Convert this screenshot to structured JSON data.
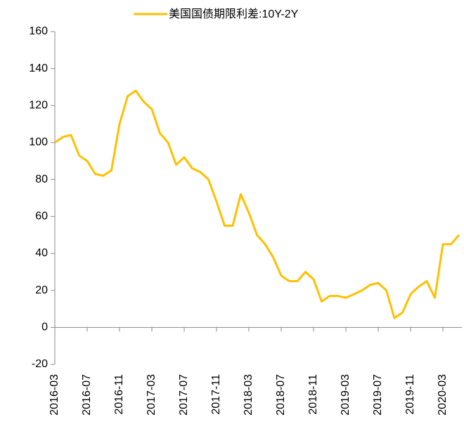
{
  "chart_data": {
    "type": "line",
    "categories": [
      "2016-03",
      null,
      null,
      null,
      "2016-07",
      null,
      null,
      null,
      "2016-11",
      null,
      null,
      null,
      "2017-03",
      null,
      null,
      null,
      "2017-07",
      null,
      null,
      null,
      "2017-11",
      null,
      null,
      null,
      "2018-03",
      null,
      null,
      null,
      "2018-07",
      null,
      null,
      null,
      "2018-11",
      null,
      null,
      null,
      "2019-03",
      null,
      null,
      null,
      "2019-07",
      null,
      null,
      null,
      "2019-11",
      null,
      null,
      null,
      "2020-03",
      null,
      null
    ],
    "series": [
      {
        "name": "美国国债期限利差:10Y-2Y",
        "color": "#FFC000",
        "values": [
          100,
          103,
          104,
          93,
          90,
          83,
          82,
          85,
          110,
          125,
          128,
          122,
          118,
          105,
          100,
          88,
          92,
          86,
          84,
          80,
          68,
          55,
          55,
          72,
          62,
          50,
          45,
          38,
          28,
          25,
          25,
          30,
          26,
          14,
          17,
          17,
          16,
          18,
          20,
          23,
          24,
          20,
          5,
          8,
          18,
          22,
          25,
          16,
          45,
          45,
          50
        ]
      }
    ],
    "ylim": [
      -20,
      160
    ],
    "yticks": [
      -20,
      0,
      20,
      40,
      60,
      80,
      100,
      120,
      140,
      160
    ],
    "grid": false,
    "legend": "top"
  }
}
